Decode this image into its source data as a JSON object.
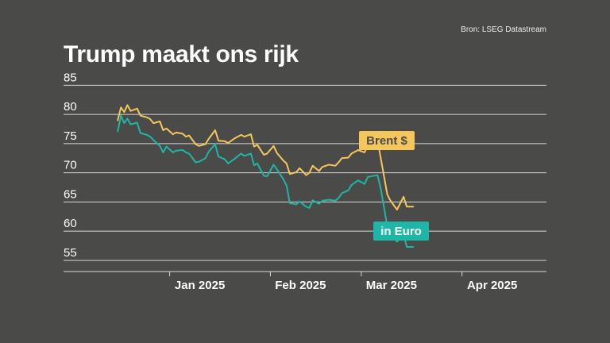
{
  "source": "Bron: LSEG Datastream",
  "title": "Trump maakt ons rijk",
  "colors": {
    "background": "#4a4a48",
    "brent": "#f5c65c",
    "euro": "#1eb6a7",
    "grid": "#d8d8d8"
  },
  "chart_data": {
    "type": "line",
    "title": "Trump maakt ons rijk",
    "ylim": [
      52,
      86
    ],
    "yticks": [
      85,
      80,
      75,
      70,
      65,
      60,
      55
    ],
    "xticks": [
      {
        "label": "Jan 2025",
        "x": "2025-01-01"
      },
      {
        "label": "Feb 2025",
        "x": "2025-02-01"
      },
      {
        "label": "Mar 2025",
        "x": "2025-03-01"
      },
      {
        "label": "Apr 2025",
        "x": "2025-04-01"
      }
    ],
    "xlim": [
      "2024-12-14",
      "2025-04-27"
    ],
    "grid": true,
    "series": [
      {
        "name": "Brent $",
        "color": "#f5c65c",
        "label_color": "#f5c65c",
        "points": [
          [
            "2024-12-16",
            79.0
          ],
          [
            "2024-12-17",
            81.2
          ],
          [
            "2024-12-18",
            80.4
          ],
          [
            "2024-12-19",
            81.6
          ],
          [
            "2024-12-20",
            80.6
          ],
          [
            "2024-12-22",
            81.0
          ],
          [
            "2024-12-23",
            79.8
          ],
          [
            "2024-12-25",
            79.5
          ],
          [
            "2024-12-26",
            79.2
          ],
          [
            "2024-12-27",
            78.5
          ],
          [
            "2024-12-29",
            78.8
          ],
          [
            "2024-12-30",
            77.3
          ],
          [
            "2024-12-31",
            77.6
          ],
          [
            "2025-01-02",
            76.6
          ],
          [
            "2025-01-03",
            76.9
          ],
          [
            "2025-01-05",
            76.7
          ],
          [
            "2025-01-06",
            76.2
          ],
          [
            "2025-01-07",
            76.4
          ],
          [
            "2025-01-09",
            74.9
          ],
          [
            "2025-01-10",
            74.6
          ],
          [
            "2025-01-12",
            74.9
          ],
          [
            "2025-01-13",
            75.8
          ],
          [
            "2025-01-15",
            77.3
          ],
          [
            "2025-01-16",
            75.5
          ],
          [
            "2025-01-18",
            75.4
          ],
          [
            "2025-01-19",
            75.1
          ],
          [
            "2025-01-21",
            75.9
          ],
          [
            "2025-01-23",
            76.5
          ],
          [
            "2025-01-24",
            76.2
          ],
          [
            "2025-01-26",
            76.6
          ],
          [
            "2025-01-27",
            74.5
          ],
          [
            "2025-01-28",
            74.8
          ],
          [
            "2025-01-30",
            73.1
          ],
          [
            "2025-01-31",
            73.3
          ],
          [
            "2025-02-02",
            74.6
          ],
          [
            "2025-02-03",
            73.4
          ],
          [
            "2025-02-05",
            72.1
          ],
          [
            "2025-02-06",
            71.6
          ],
          [
            "2025-02-07",
            69.8
          ],
          [
            "2025-02-09",
            70.1
          ],
          [
            "2025-02-10",
            70.8
          ],
          [
            "2025-02-12",
            69.6
          ],
          [
            "2025-02-13",
            70.0
          ],
          [
            "2025-02-14",
            71.2
          ],
          [
            "2025-02-16",
            70.3
          ],
          [
            "2025-02-17",
            71.0
          ],
          [
            "2025-02-19",
            71.4
          ],
          [
            "2025-02-21",
            71.2
          ],
          [
            "2025-02-22",
            71.8
          ],
          [
            "2025-02-23",
            72.5
          ],
          [
            "2025-02-25",
            72.6
          ],
          [
            "2025-02-26",
            73.3
          ],
          [
            "2025-02-28",
            73.9
          ],
          [
            "2025-03-02",
            73.5
          ],
          [
            "2025-03-03",
            74.8
          ],
          [
            "2025-03-05",
            75.1
          ],
          [
            "2025-03-06",
            75.6
          ],
          [
            "2025-03-07",
            72.5
          ],
          [
            "2025-03-09",
            66.3
          ],
          [
            "2025-03-10",
            65.2
          ],
          [
            "2025-03-12",
            63.7
          ],
          [
            "2025-03-14",
            65.9
          ],
          [
            "2025-03-15",
            64.2
          ],
          [
            "2025-03-17",
            64.2
          ]
        ]
      },
      {
        "name": "in Euro",
        "color": "#1eb6a7",
        "label_color": "#1eb6a7",
        "points": [
          [
            "2024-12-16",
            77.1
          ],
          [
            "2024-12-17",
            79.8
          ],
          [
            "2024-12-18",
            78.5
          ],
          [
            "2024-12-19",
            79.3
          ],
          [
            "2024-12-20",
            78.3
          ],
          [
            "2024-12-22",
            78.6
          ],
          [
            "2024-12-23",
            76.8
          ],
          [
            "2024-12-25",
            76.5
          ],
          [
            "2024-12-26",
            76.2
          ],
          [
            "2024-12-27",
            75.6
          ],
          [
            "2024-12-29",
            74.6
          ],
          [
            "2024-12-30",
            73.5
          ],
          [
            "2024-12-31",
            74.5
          ],
          [
            "2025-01-02",
            73.5
          ],
          [
            "2025-01-03",
            73.8
          ],
          [
            "2025-01-05",
            73.9
          ],
          [
            "2025-01-06",
            73.5
          ],
          [
            "2025-01-07",
            73.3
          ],
          [
            "2025-01-09",
            71.8
          ],
          [
            "2025-01-10",
            71.9
          ],
          [
            "2025-01-12",
            72.5
          ],
          [
            "2025-01-13",
            73.6
          ],
          [
            "2025-01-15",
            74.9
          ],
          [
            "2025-01-16",
            72.8
          ],
          [
            "2025-01-18",
            72.3
          ],
          [
            "2025-01-19",
            71.6
          ],
          [
            "2025-01-21",
            72.4
          ],
          [
            "2025-01-23",
            73.3
          ],
          [
            "2025-01-24",
            72.9
          ],
          [
            "2025-01-26",
            73.3
          ],
          [
            "2025-01-27",
            71.3
          ],
          [
            "2025-01-28",
            71.6
          ],
          [
            "2025-01-30",
            69.5
          ],
          [
            "2025-01-31",
            69.4
          ],
          [
            "2025-02-02",
            71.4
          ],
          [
            "2025-02-03",
            70.6
          ],
          [
            "2025-02-05",
            68.9
          ],
          [
            "2025-02-06",
            67.8
          ],
          [
            "2025-02-07",
            64.8
          ],
          [
            "2025-02-09",
            64.6
          ],
          [
            "2025-02-10",
            65.1
          ],
          [
            "2025-02-12",
            64.2
          ],
          [
            "2025-02-13",
            64.0
          ],
          [
            "2025-02-14",
            65.3
          ],
          [
            "2025-02-16",
            64.7
          ],
          [
            "2025-02-17",
            65.2
          ],
          [
            "2025-02-19",
            65.4
          ],
          [
            "2025-02-21",
            65.2
          ],
          [
            "2025-02-22",
            65.7
          ],
          [
            "2025-02-23",
            66.5
          ],
          [
            "2025-02-25",
            67.0
          ],
          [
            "2025-02-26",
            67.9
          ],
          [
            "2025-02-28",
            68.7
          ],
          [
            "2025-03-02",
            68.1
          ],
          [
            "2025-03-03",
            69.3
          ],
          [
            "2025-03-05",
            69.5
          ],
          [
            "2025-03-06",
            69.6
          ],
          [
            "2025-03-07",
            67.3
          ],
          [
            "2025-03-09",
            60.8
          ],
          [
            "2025-03-10",
            59.6
          ],
          [
            "2025-03-12",
            58.2
          ],
          [
            "2025-03-14",
            59.7
          ],
          [
            "2025-03-15",
            57.3
          ],
          [
            "2025-03-17",
            57.3
          ]
        ]
      }
    ]
  }
}
